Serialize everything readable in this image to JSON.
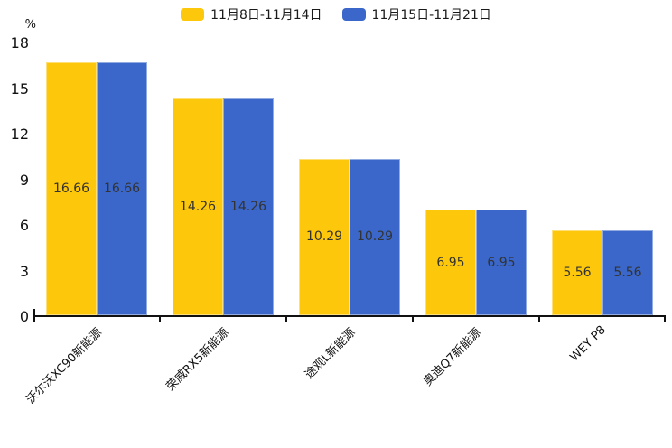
{
  "chart_data": {
    "type": "bar",
    "title": "",
    "unit_label": "%",
    "categories": [
      "沃尔沃XC90新能源",
      "荣威RX5新能源",
      "途观L新能源",
      "奥迪Q7新能源",
      "WEY P8"
    ],
    "series": [
      {
        "name": "11月8日-11月14日",
        "color": "#FDC70B",
        "values": [
          16.66,
          14.26,
          10.29,
          6.95,
          5.56
        ]
      },
      {
        "name": "11月15日-11月21日",
        "color": "#3A67C9",
        "values": [
          16.66,
          14.26,
          10.29,
          6.95,
          5.56
        ]
      }
    ],
    "ylim": [
      0,
      18
    ],
    "yticks": [
      0,
      3,
      6,
      9,
      12,
      15,
      18
    ],
    "legend_position": "top",
    "grid": false,
    "value_labels": "inside-middle",
    "xlabel_rotation_deg": -45
  },
  "style": {
    "axis_color": "#111111",
    "value_label_color": "#333333",
    "legend_text_color": "#1a1a1a",
    "background": "#ffffff"
  }
}
